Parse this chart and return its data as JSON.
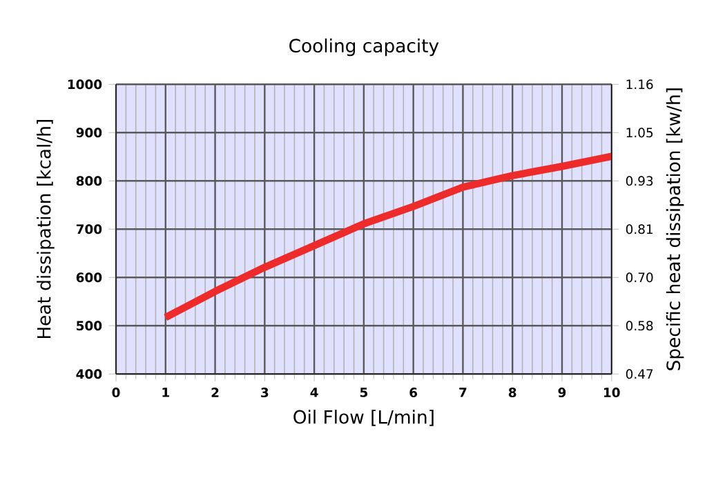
{
  "chart_data": {
    "type": "line",
    "title": "Cooling capacity",
    "xlabel": "Oil Flow [L/min]",
    "ylabel": "Heat dissipation [kcal/h]",
    "y2label": "Specific heat dissipation [kw/h]",
    "x": [
      1,
      2,
      3,
      4,
      5,
      6,
      7,
      8,
      9,
      10
    ],
    "series": [
      {
        "color": "#ee2b2b",
        "values": [
          517,
          571,
          621,
          666,
          711,
          747,
          787,
          811,
          830,
          851
        ]
      }
    ],
    "xlim": [
      0,
      10
    ],
    "xticks": [
      0,
      1,
      2,
      3,
      4,
      5,
      6,
      7,
      8,
      9,
      10
    ],
    "ylim": [
      400,
      1000
    ],
    "yticks": [
      400,
      500,
      600,
      700,
      800,
      900,
      1000
    ],
    "y2lim": [
      0.47,
      1.16
    ],
    "y2ticks": [
      {
        "value": 0.47,
        "label": "0.47"
      },
      {
        "value": 0.585,
        "label": "0.58"
      },
      {
        "value": 0.7,
        "label": "0.70"
      },
      {
        "value": 0.815,
        "label": "0.81"
      },
      {
        "value": 0.93,
        "label": "0.93"
      },
      {
        "value": 1.045,
        "label": "1.05"
      },
      {
        "value": 1.16,
        "label": "1.16"
      }
    ],
    "grid": true,
    "marker": "none",
    "line_style": "solid"
  }
}
